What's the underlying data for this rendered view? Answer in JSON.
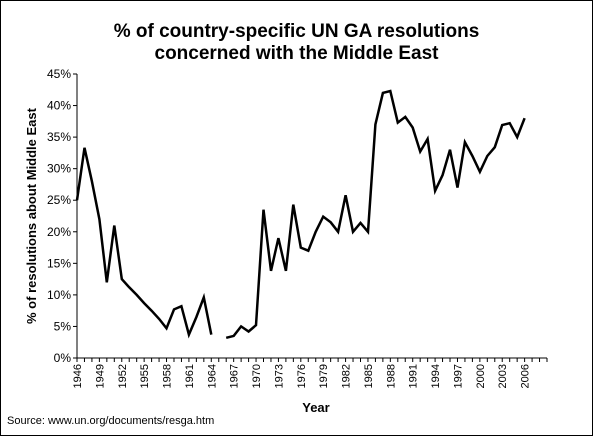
{
  "chart_data": {
    "type": "line",
    "title_line1": "% of country-specific UN GA resolutions",
    "title_line2": "concerned with the Middle East",
    "xlabel": "Year",
    "ylabel": "% of resolutions about Middle East",
    "ylim": [
      0,
      45
    ],
    "yticks": [
      "0%",
      "5%",
      "10%",
      "15%",
      "20%",
      "25%",
      "30%",
      "35%",
      "40%",
      "45%"
    ],
    "xticks": [
      "1946",
      "1949",
      "1952",
      "1955",
      "1958",
      "1961",
      "1964",
      "1967",
      "1970",
      "1973",
      "1976",
      "1979",
      "1982",
      "1985",
      "1988",
      "1991",
      "1994",
      "1997",
      "2000",
      "2003",
      "2006"
    ],
    "xlim": [
      1946,
      2009
    ],
    "grid": false,
    "legend": false,
    "series": [
      {
        "color": "#000000",
        "x": [
          1946,
          1947,
          1948,
          1949,
          1950,
          1951,
          1952,
          1953,
          1954,
          1955,
          1956,
          1957,
          1958,
          1959,
          1960,
          1961,
          1962,
          1963,
          1964,
          1965,
          1966,
          1967,
          1968,
          1969,
          1970,
          1971,
          1972,
          1973,
          1974,
          1975,
          1976,
          1977,
          1978,
          1979,
          1980,
          1981,
          1982,
          1983,
          1984,
          1985,
          1986,
          1987,
          1988,
          1989,
          1990,
          1991,
          1992,
          1993,
          1994,
          1995,
          1996,
          1997,
          1998,
          1999,
          2000,
          2001,
          2002,
          2003,
          2004,
          2005,
          2006
        ],
        "y": [
          25.0,
          33.3,
          28.0,
          22.0,
          12.0,
          21.0,
          12.5,
          11.2,
          10.0,
          8.7,
          7.5,
          6.2,
          4.7,
          7.7,
          8.2,
          3.7,
          6.5,
          9.6,
          3.7,
          null,
          3.2,
          3.5,
          5.0,
          4.2,
          5.2,
          23.5,
          13.8,
          19.0,
          13.8,
          24.3,
          17.5,
          17.0,
          20.0,
          22.4,
          21.5,
          20.0,
          25.8,
          20.0,
          21.4,
          20.0,
          37.0,
          42.0,
          42.3,
          37.3,
          38.2,
          36.5,
          32.7,
          34.7,
          26.5,
          29.0,
          33.0,
          27.0,
          34.2,
          32.0,
          29.5,
          32.0,
          33.4,
          36.9,
          37.2,
          35.0,
          38.0
        ]
      }
    ]
  },
  "source_text": "Source: www.un.org/documents/resga.htm"
}
